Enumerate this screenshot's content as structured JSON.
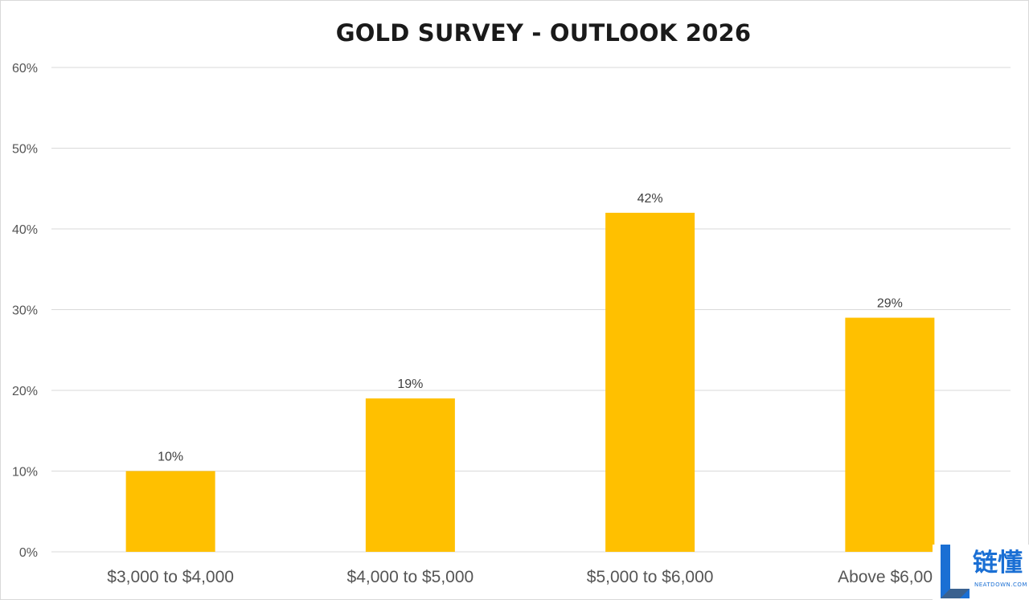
{
  "chart_data": {
    "type": "bar",
    "title": "GOLD SURVEY - OUTLOOK 2026",
    "categories": [
      "$3,000 to $4,000",
      "$4,000 to $5,000",
      "$5,000 to $6,000",
      "Above $6,000"
    ],
    "series": [
      {
        "values": [
          10,
          19,
          42,
          29
        ],
        "labels": [
          "10%",
          "19%",
          "42%",
          "29%"
        ],
        "color": "#ffc000"
      }
    ],
    "xlabel": "",
    "ylabel": "",
    "ylim": [
      0,
      60
    ],
    "yticks": [
      0,
      10,
      20,
      30,
      40,
      50,
      60
    ],
    "ytick_labels": [
      "0%",
      "10%",
      "20%",
      "30%",
      "40%",
      "50%",
      "60%"
    ],
    "grid": true,
    "legend": "none"
  },
  "colors": {
    "bar": "#ffc000",
    "grid": "#d9d9d9",
    "watermark": "#1a6fd4"
  },
  "watermark": {
    "text": "链懂",
    "subtext": "NEATDOWN.COM"
  }
}
